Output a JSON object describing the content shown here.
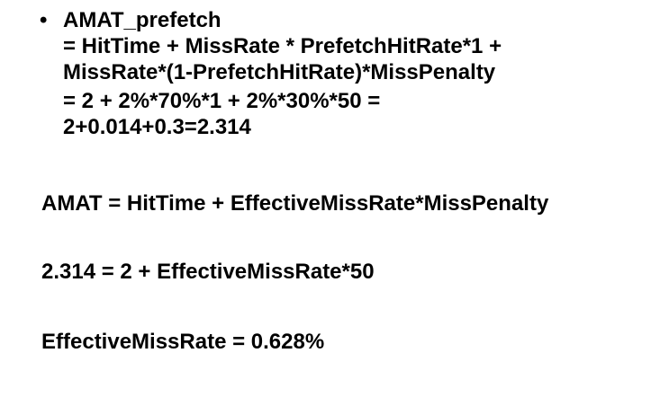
{
  "bullet": {
    "symbol": "•",
    "title": "AMAT_prefetch",
    "formula_lines": [
      "= HitTime + MissRate * PrefetchHitRate*1 +",
      "MissRate*(1-PrefetchHitRate)*MissPenalty"
    ],
    "substitution_lines": [
      "= 2 + 2%*70%*1 + 2%*30%*50 =",
      "2+0.014+0.3=2.314"
    ]
  },
  "amat_formula": "AMAT = HitTime + EffectiveMissRate*MissPenalty",
  "solve_equation": "2.314 = 2 + EffectiveMissRate*50",
  "result": "EffectiveMissRate = 0.628%"
}
